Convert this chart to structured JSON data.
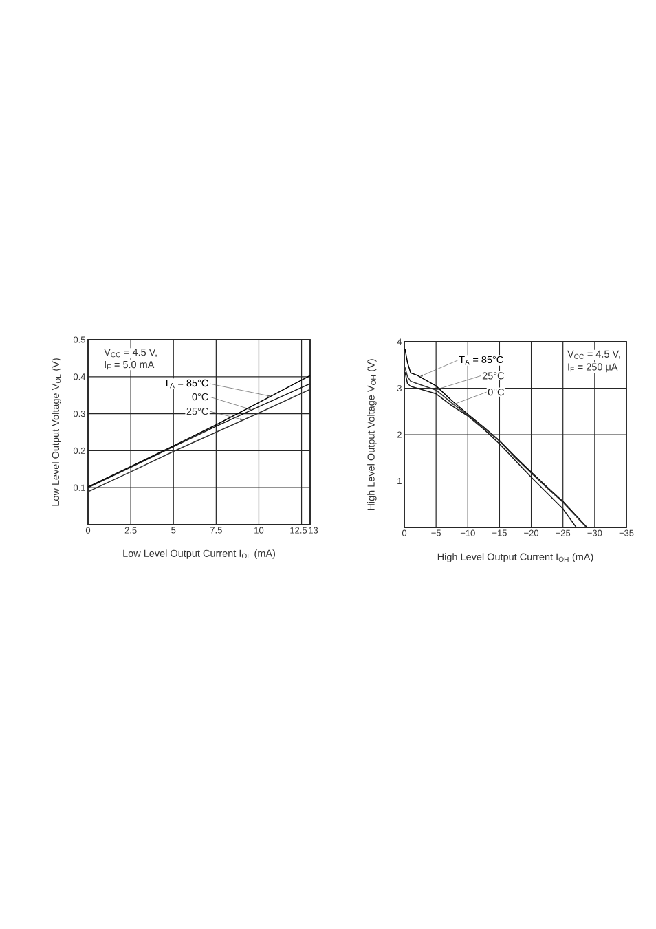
{
  "chart_data": [
    {
      "type": "line",
      "xlabel": "Low Level Output Current I$_{OL}$ (mA)",
      "ylabel": "Low Level Output Voltage V$_{OL}$ (V)",
      "xlim": [
        0,
        13
      ],
      "ylim": [
        0,
        0.5
      ],
      "xticks": [
        0,
        2.5,
        5,
        7.5,
        10,
        12.5,
        13
      ],
      "yticks": [
        0.1,
        0.2,
        0.3,
        0.4,
        0.5
      ],
      "grid": true,
      "marker": "none",
      "line_style": "solid",
      "x": [
        0,
        2.5,
        5,
        7.5,
        10,
        13
      ],
      "series": [
        {
          "name": "T$_{A}$ = 85°C",
          "color": "#000000",
          "values": [
            0.102,
            0.157,
            0.213,
            0.27,
            0.33,
            0.403
          ]
        },
        {
          "name": "0°C",
          "color": "#1a1a1a",
          "values": [
            0.1,
            0.155,
            0.211,
            0.266,
            0.319,
            0.381
          ]
        },
        {
          "name": "25°C",
          "color": "#333333",
          "values": [
            0.089,
            0.143,
            0.198,
            0.25,
            0.302,
            0.366
          ]
        }
      ],
      "annotations": [
        "V$_{CC}$ = 4.5 V,",
        "I$_{F}$ = 5.0 mA"
      ]
    },
    {
      "type": "line",
      "xlabel": "High Level Output Current I$_{OH}$ (mA)",
      "ylabel": "High Level Output Voltage V$_{OH}$ (V)",
      "xlim": [
        0,
        -35
      ],
      "ylim": [
        0,
        4
      ],
      "xticks": [
        0,
        {
          "value": -5,
          "label": "−5"
        },
        {
          "value": -10,
          "label": "−10"
        },
        {
          "value": -15,
          "label": "−15"
        },
        {
          "value": -20,
          "label": "−20"
        },
        {
          "value": -25,
          "label": "−25"
        },
        {
          "value": -30,
          "label": "−30"
        },
        {
          "value": -35,
          "label": "−35"
        }
      ],
      "yticks": [
        1,
        2,
        3,
        4
      ],
      "grid": true,
      "marker": "none",
      "line_style": "solid",
      "series": [
        {
          "name": "T$_{A}$ = 85°C",
          "color": "#000000",
          "x": [
            -0.1,
            -0.5,
            -1,
            -2,
            -5,
            -7.5,
            -10,
            -12.5,
            -15,
            -17.5,
            -20,
            -22.5,
            -25,
            -28.8
          ],
          "values": [
            3.85,
            3.55,
            3.33,
            3.28,
            3.05,
            2.73,
            2.44,
            2.16,
            1.87,
            1.52,
            1.19,
            0.87,
            0.56,
            0
          ]
        },
        {
          "name": "25°C",
          "color": "#333333",
          "x": [
            -0.1,
            -0.5,
            -1,
            -2,
            -5,
            -7.5,
            -10,
            -12.5,
            -15,
            -17.5,
            -20,
            -22.5,
            -25,
            -28.7
          ],
          "values": [
            3.45,
            3.25,
            3.15,
            3.1,
            2.96,
            2.68,
            2.42,
            2.15,
            1.86,
            1.5,
            1.17,
            0.85,
            0.54,
            0
          ]
        },
        {
          "name": "0°C",
          "color": "#1a1a1a",
          "x": [
            -0.1,
            -0.5,
            -1,
            -2,
            -5,
            -7.5,
            -10,
            -12.5,
            -15,
            -17.5,
            -20,
            -22.5,
            -25,
            -27.1
          ],
          "values": [
            3.35,
            3.1,
            3.04,
            3.0,
            2.88,
            2.62,
            2.4,
            2.12,
            1.8,
            1.44,
            1.08,
            0.74,
            0.4,
            0
          ]
        }
      ],
      "annotations": [
        "V$_{CC}$ = 4.5 V,",
        "I$_{F}$ = 250 μA"
      ]
    }
  ]
}
